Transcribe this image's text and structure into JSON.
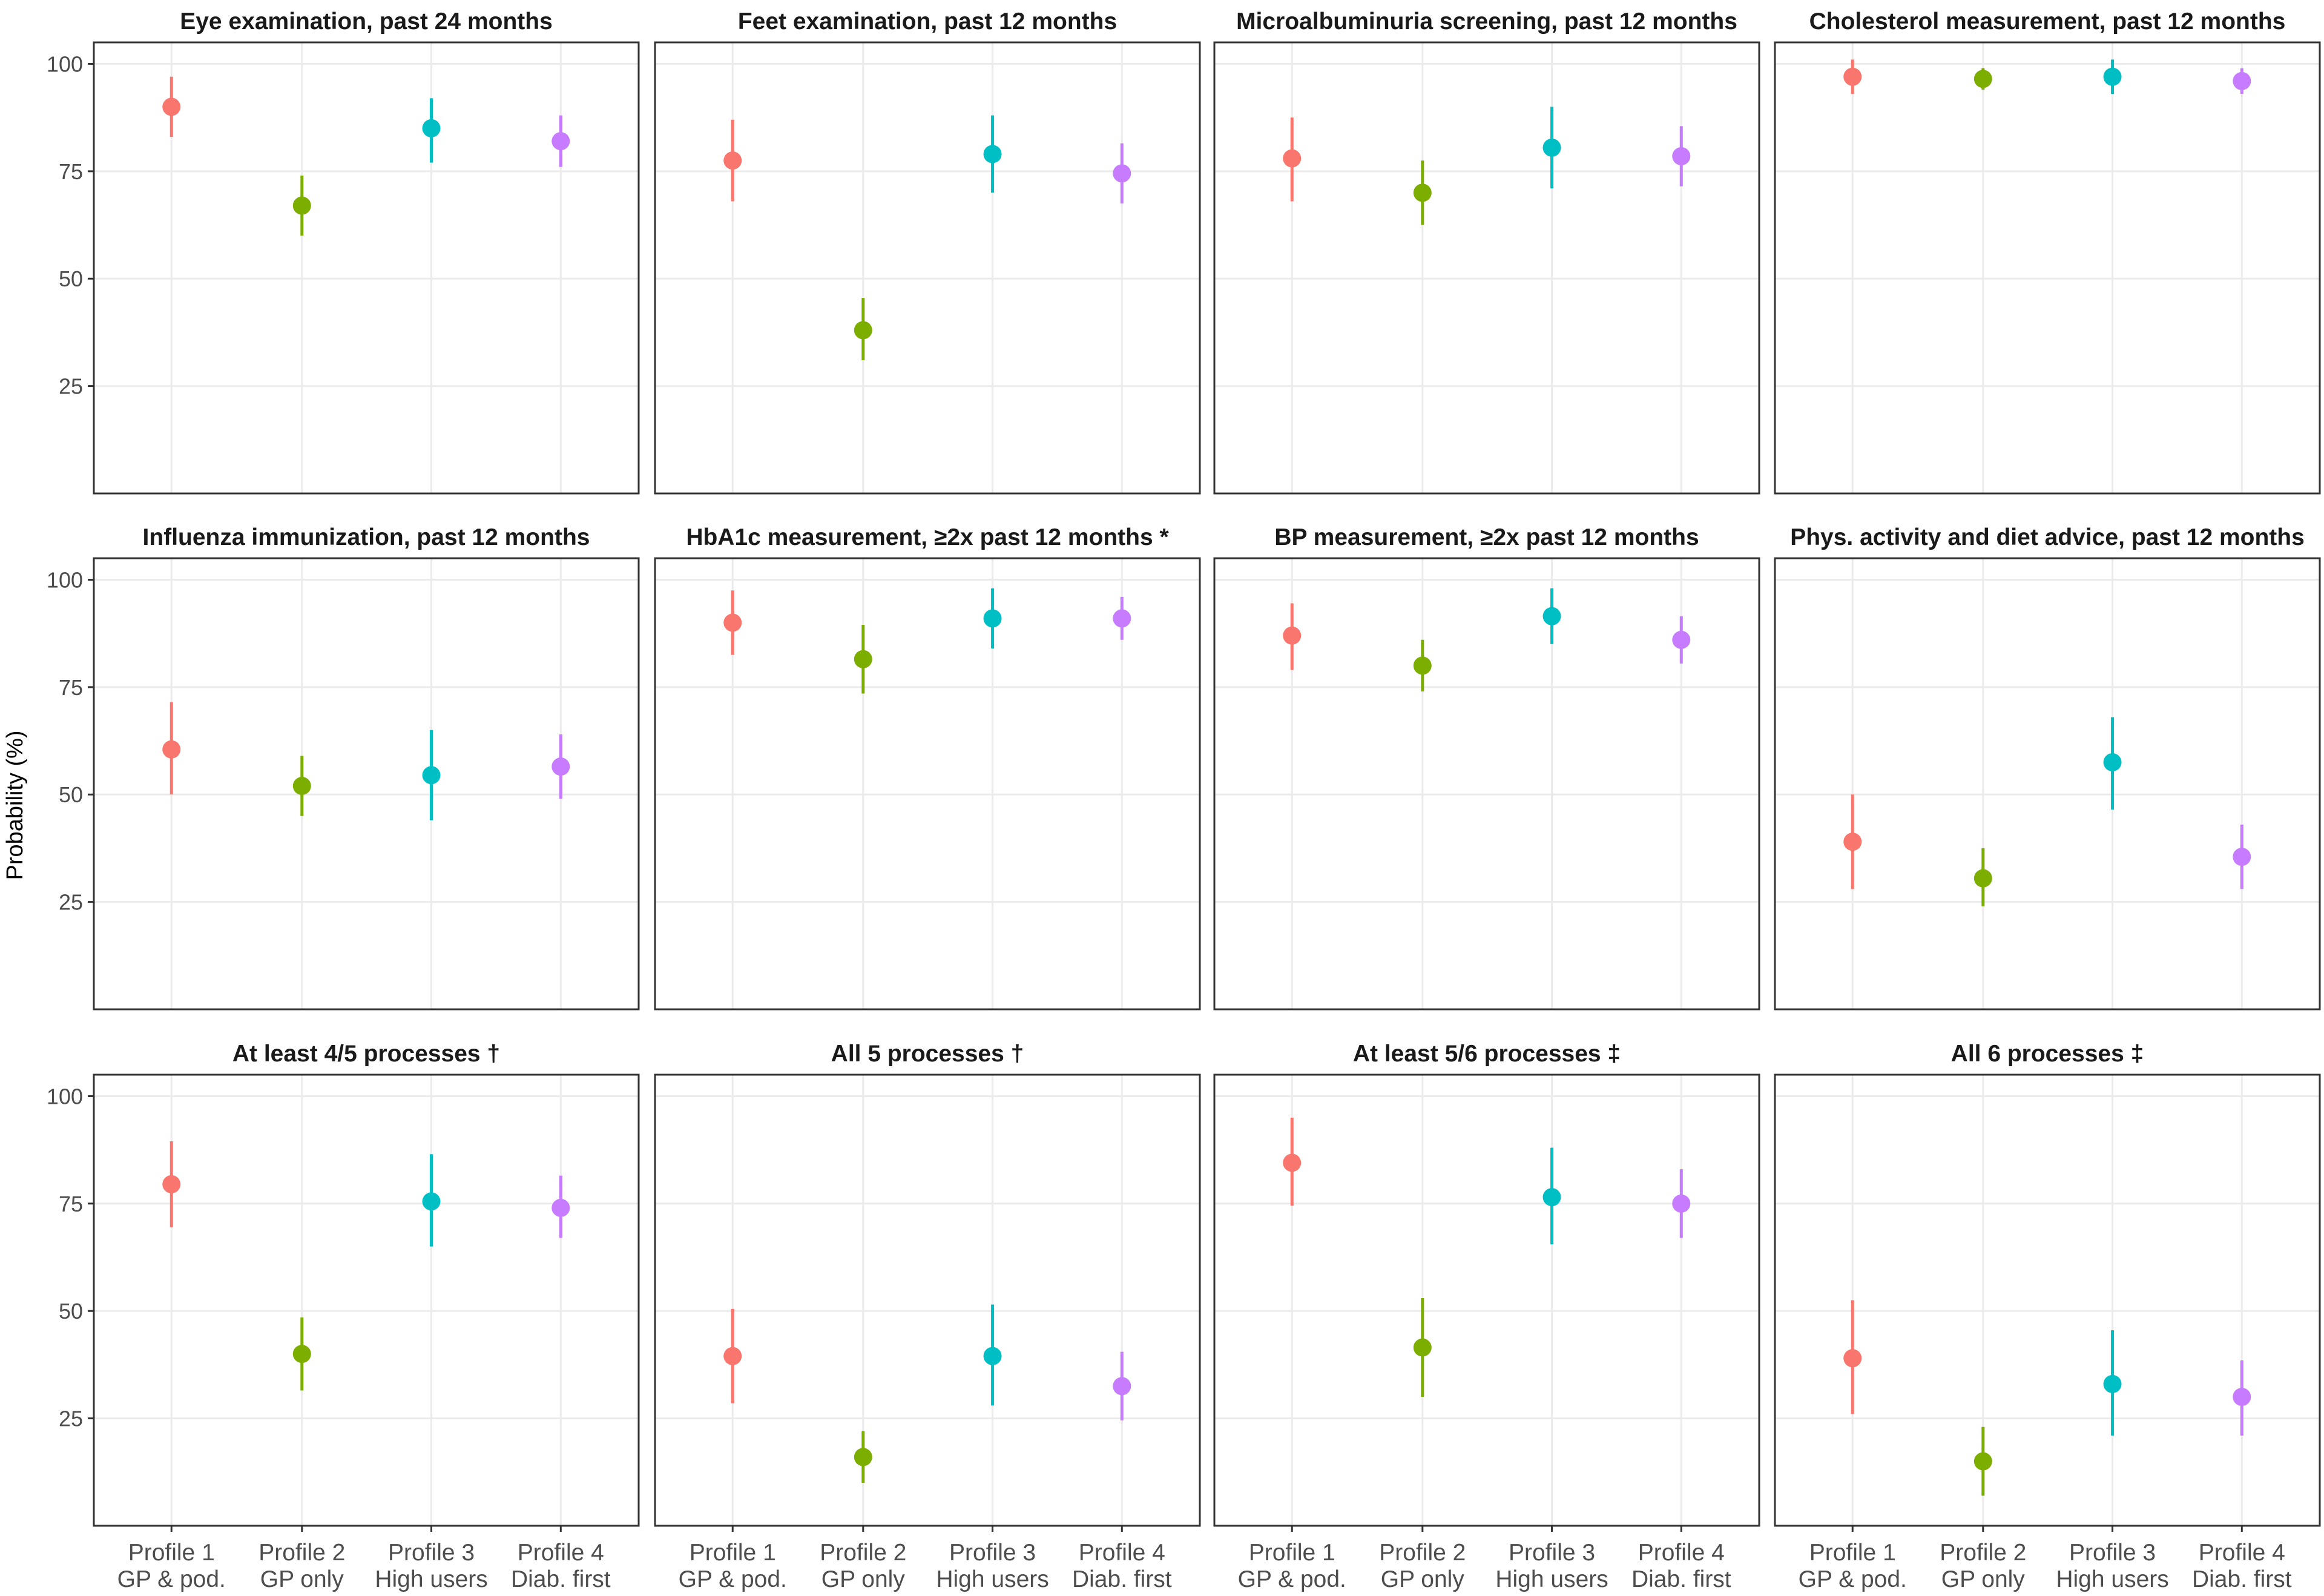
{
  "chart_data": {
    "type": "scatter",
    "subtype": "point-range faceted",
    "ylabel": "Probability (%)",
    "ylim": [
      0,
      105
    ],
    "yticks": [
      25,
      50,
      75,
      100
    ],
    "grid": true,
    "facet_layout": "3 rows x 4 columns",
    "categories": [
      {
        "line1": "Profile 1",
        "line2": "GP & pod."
      },
      {
        "line1": "Profile 2",
        "line2": "GP only"
      },
      {
        "line1": "Profile 3",
        "line2": "High users"
      },
      {
        "line1": "Profile 4",
        "line2": "Diab. first"
      }
    ],
    "colors": [
      "#f8766d",
      "#7cae00",
      "#00bfc4",
      "#c77cff"
    ],
    "panels": [
      {
        "title": "Eye examination, past 24 months",
        "estimates": [
          90,
          67,
          85,
          82
        ],
        "lower": [
          83,
          60,
          77,
          76
        ],
        "upper": [
          97,
          74,
          92,
          88
        ]
      },
      {
        "title": "Feet examination, past 12 months",
        "estimates": [
          77.5,
          38,
          79,
          74.5
        ],
        "lower": [
          68,
          31,
          70,
          67.5
        ],
        "upper": [
          87,
          45.5,
          88,
          81.5
        ]
      },
      {
        "title": "Microalbuminuria screening, past 12 months",
        "estimates": [
          78,
          70,
          80.5,
          78.5
        ],
        "lower": [
          68,
          62.5,
          71,
          71.5
        ],
        "upper": [
          87.5,
          77.5,
          90,
          85.5
        ]
      },
      {
        "title": "Cholesterol measurement, past 12 months",
        "estimates": [
          97,
          96.5,
          97,
          96
        ],
        "lower": [
          93,
          94,
          93,
          93
        ],
        "upper": [
          101,
          99,
          101,
          99
        ]
      },
      {
        "title": "Influenza immunization, past 12 months",
        "estimates": [
          60.5,
          52,
          54.5,
          56.5
        ],
        "lower": [
          50,
          45,
          44,
          49
        ],
        "upper": [
          71.5,
          59,
          65,
          64
        ]
      },
      {
        "title": "HbA1c measurement, ≥2x past 12 months *",
        "estimates": [
          90,
          81.5,
          91,
          91
        ],
        "lower": [
          82.5,
          73.5,
          84,
          86
        ],
        "upper": [
          97.5,
          89.5,
          98,
          96
        ]
      },
      {
        "title": "BP measurement, ≥2x past 12 months",
        "estimates": [
          87,
          80,
          91.5,
          86
        ],
        "lower": [
          79,
          74,
          85,
          80.5
        ],
        "upper": [
          94.5,
          86,
          98,
          91.5
        ]
      },
      {
        "title": "Phys. activity and diet advice, past 12 months",
        "estimates": [
          39,
          30.5,
          57.5,
          35.5
        ],
        "lower": [
          28,
          24,
          46.5,
          28
        ],
        "upper": [
          50,
          37.5,
          68,
          43
        ]
      },
      {
        "title": "At least 4/5 processes †",
        "estimates": [
          79.5,
          40,
          75.5,
          74
        ],
        "lower": [
          69.5,
          31.5,
          65,
          67
        ],
        "upper": [
          89.5,
          48.5,
          86.5,
          81.5
        ]
      },
      {
        "title": "All 5 processes †",
        "estimates": [
          39.5,
          16,
          39.5,
          32.5
        ],
        "lower": [
          28.5,
          10,
          28,
          24.5
        ],
        "upper": [
          50.5,
          22,
          51.5,
          40.5
        ]
      },
      {
        "title": "At least 5/6 processes ‡",
        "estimates": [
          84.5,
          41.5,
          76.5,
          75
        ],
        "lower": [
          74.5,
          30,
          65.5,
          67
        ],
        "upper": [
          95,
          53,
          88,
          83
        ]
      },
      {
        "title": "All 6 processes ‡",
        "estimates": [
          39,
          15,
          33,
          30
        ],
        "lower": [
          26,
          7,
          21,
          21
        ],
        "upper": [
          52.5,
          23,
          45.5,
          38.5
        ]
      }
    ]
  }
}
